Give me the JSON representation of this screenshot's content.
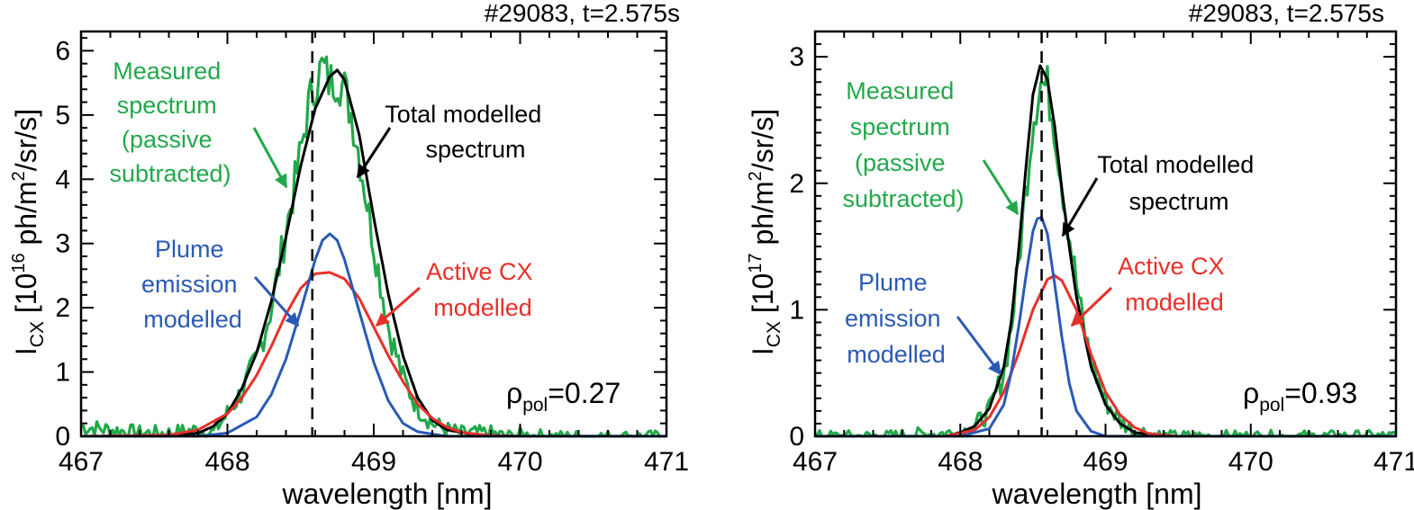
{
  "colors": {
    "measured": "#22a84a",
    "total": "#000000",
    "plume": "#2a5ab5",
    "active": "#e8302a"
  },
  "chart_data": [
    {
      "type": "line",
      "title": "#29083, t=2.575s",
      "xlabel": "wavelength [nm]",
      "ylabel": {
        "prefix": "I",
        "sub": "CX",
        "open": " [10",
        "sup1": "16",
        "mid": " ph/m",
        "sup2": "2",
        "end": "/sr/s]"
      },
      "xlim": [
        467,
        471
      ],
      "ylim": [
        0,
        6.3
      ],
      "xticks": [
        467,
        468,
        469,
        470,
        471
      ],
      "yticks": [
        0,
        1,
        2,
        3,
        4,
        5,
        6
      ],
      "vline_x": 468.58,
      "rho": {
        "symbol": "ρ",
        "sub": "pol",
        "value": "=0.27"
      },
      "grid": false,
      "series": [
        {
          "name": "Measured spectrum (passive subtracted)",
          "color_key": "measured",
          "kind": "noisy",
          "x": [
            467.0,
            467.2,
            467.4,
            467.6,
            467.8,
            467.9,
            468.0,
            468.1,
            468.2,
            468.3,
            468.4,
            468.5,
            468.55,
            468.6,
            468.65,
            468.7,
            468.75,
            468.8,
            468.85,
            468.9,
            469.0,
            469.1,
            469.2,
            469.3,
            469.4,
            469.5,
            469.6,
            469.7,
            469.8,
            469.9,
            470.0,
            470.2,
            470.4,
            470.6,
            470.8,
            471.0
          ],
          "y": [
            0.15,
            0.1,
            0.05,
            0.05,
            0.1,
            0.05,
            0.35,
            0.7,
            1.2,
            2.0,
            3.2,
            4.4,
            5.1,
            5.5,
            5.75,
            5.5,
            5.6,
            5.4,
            5.0,
            4.4,
            3.0,
            1.7,
            0.9,
            0.45,
            0.2,
            0.1,
            0.05,
            0.05,
            0.05,
            0.0,
            0.02,
            0.0,
            0.0,
            0.0,
            0.0,
            0.0
          ]
        },
        {
          "name": "Total modelled spectrum",
          "color_key": "total",
          "kind": "smooth",
          "x": [
            467.0,
            467.6,
            467.8,
            467.9,
            468.0,
            468.1,
            468.2,
            468.3,
            468.4,
            468.5,
            468.6,
            468.7,
            468.75,
            468.8,
            468.9,
            469.0,
            469.1,
            469.2,
            469.3,
            469.4,
            469.5,
            469.7,
            470.0,
            471.0
          ],
          "y": [
            0.0,
            0.0,
            0.05,
            0.15,
            0.35,
            0.75,
            1.3,
            2.1,
            3.1,
            4.2,
            5.1,
            5.6,
            5.7,
            5.55,
            4.7,
            3.4,
            2.2,
            1.25,
            0.6,
            0.25,
            0.1,
            0.02,
            0.0,
            0.0
          ]
        },
        {
          "name": "Plume emission modelled",
          "color_key": "plume",
          "kind": "smooth",
          "x": [
            467.0,
            467.8,
            468.0,
            468.2,
            468.3,
            468.4,
            468.5,
            468.6,
            468.65,
            468.7,
            468.75,
            468.8,
            468.9,
            469.0,
            469.1,
            469.2,
            469.3,
            469.5,
            470.0,
            471.0
          ],
          "y": [
            0.0,
            0.0,
            0.05,
            0.3,
            0.65,
            1.2,
            1.95,
            2.75,
            3.05,
            3.15,
            3.05,
            2.75,
            1.95,
            1.15,
            0.55,
            0.2,
            0.07,
            0.0,
            0.0,
            0.0
          ]
        },
        {
          "name": "Active CX modelled",
          "color_key": "active",
          "kind": "smooth",
          "x": [
            467.0,
            467.6,
            467.8,
            468.0,
            468.1,
            468.2,
            468.3,
            468.4,
            468.5,
            468.6,
            468.7,
            468.8,
            468.9,
            469.0,
            469.1,
            469.2,
            469.3,
            469.4,
            469.5,
            469.6,
            469.8,
            470.0,
            471.0
          ],
          "y": [
            0.0,
            0.02,
            0.1,
            0.35,
            0.6,
            0.95,
            1.4,
            1.9,
            2.3,
            2.53,
            2.55,
            2.45,
            2.15,
            1.7,
            1.25,
            0.85,
            0.5,
            0.28,
            0.14,
            0.06,
            0.01,
            0.0,
            0.0
          ]
        }
      ]
    },
    {
      "type": "line",
      "title": "#29083, t=2.575s",
      "xlabel": "wavelength [nm]",
      "ylabel": {
        "prefix": "I",
        "sub": "CX",
        "open": " [10",
        "sup1": "17",
        "mid": " ph/m",
        "sup2": "2",
        "end": "/sr/s]"
      },
      "xlim": [
        467,
        471
      ],
      "ylim": [
        0,
        3.2
      ],
      "xticks": [
        467,
        468,
        469,
        470,
        471
      ],
      "yticks": [
        0,
        1,
        2,
        3
      ],
      "vline_x": 468.56,
      "rho": {
        "symbol": "ρ",
        "sub": "pol",
        "value": "=0.93"
      },
      "grid": false,
      "series": [
        {
          "name": "Measured spectrum (passive subtracted)",
          "color_key": "measured",
          "kind": "noisy",
          "x": [
            467.0,
            467.5,
            468.0,
            468.1,
            468.2,
            468.3,
            468.35,
            468.4,
            468.45,
            468.5,
            468.55,
            468.6,
            468.65,
            468.7,
            468.75,
            468.8,
            468.85,
            468.9,
            469.0,
            469.1,
            469.2,
            469.4,
            469.7,
            470.0,
            470.5,
            471.0
          ],
          "y": [
            0.0,
            0.0,
            0.03,
            0.08,
            0.2,
            0.5,
            0.85,
            1.35,
            1.95,
            2.5,
            2.8,
            2.75,
            2.45,
            2.0,
            1.6,
            1.2,
            0.85,
            0.6,
            0.28,
            0.12,
            0.05,
            0.0,
            0.0,
            0.0,
            0.0,
            0.0
          ]
        },
        {
          "name": "Total modelled spectrum",
          "color_key": "total",
          "kind": "smooth",
          "x": [
            467.0,
            467.9,
            468.0,
            468.1,
            468.2,
            468.3,
            468.35,
            468.4,
            468.45,
            468.5,
            468.55,
            468.6,
            468.65,
            468.7,
            468.75,
            468.8,
            468.9,
            469.0,
            469.1,
            469.2,
            469.4,
            471.0
          ],
          "y": [
            0.0,
            0.0,
            0.03,
            0.08,
            0.22,
            0.55,
            0.9,
            1.45,
            2.1,
            2.7,
            2.93,
            2.82,
            2.45,
            1.95,
            1.5,
            1.1,
            0.55,
            0.25,
            0.1,
            0.03,
            0.0,
            0.0
          ]
        },
        {
          "name": "Plume emission modelled",
          "color_key": "plume",
          "kind": "smooth",
          "x": [
            467.0,
            468.0,
            468.2,
            468.3,
            468.35,
            468.4,
            468.45,
            468.5,
            468.53,
            468.56,
            468.6,
            468.65,
            468.7,
            468.75,
            468.8,
            468.9,
            469.0,
            471.0
          ],
          "y": [
            0.0,
            0.0,
            0.06,
            0.25,
            0.5,
            0.85,
            1.25,
            1.62,
            1.72,
            1.73,
            1.6,
            1.2,
            0.78,
            0.42,
            0.2,
            0.04,
            0.0,
            0.0
          ]
        },
        {
          "name": "Active CX modelled",
          "color_key": "active",
          "kind": "smooth",
          "x": [
            467.0,
            467.9,
            468.1,
            468.2,
            468.3,
            468.4,
            468.5,
            468.6,
            468.65,
            468.7,
            468.8,
            468.9,
            469.0,
            469.1,
            469.2,
            469.3,
            469.5,
            471.0
          ],
          "y": [
            0.0,
            0.0,
            0.05,
            0.15,
            0.35,
            0.65,
            1.0,
            1.24,
            1.27,
            1.23,
            1.0,
            0.65,
            0.35,
            0.17,
            0.07,
            0.02,
            0.0,
            0.0
          ]
        }
      ]
    }
  ],
  "annotations": [
    [
      {
        "lines": [
          "Measured",
          "spectrum",
          "(passive",
          "subtracted)"
        ],
        "color_key": "measured"
      },
      {
        "lines": [
          "Total modelled",
          "spectrum"
        ],
        "color_key": "total"
      },
      {
        "lines": [
          "Plume",
          "emission",
          "modelled"
        ],
        "color_key": "plume"
      },
      {
        "lines": [
          "Active CX",
          "modelled"
        ],
        "color_key": "active"
      }
    ],
    [
      {
        "lines": [
          "Measured",
          "spectrum",
          "(passive",
          "subtracted)"
        ],
        "color_key": "measured"
      },
      {
        "lines": [
          "Total modelled",
          "spectrum"
        ],
        "color_key": "total"
      },
      {
        "lines": [
          "Plume",
          "emission",
          "modelled"
        ],
        "color_key": "plume"
      },
      {
        "lines": [
          "Active CX",
          "modelled"
        ],
        "color_key": "active"
      }
    ]
  ]
}
